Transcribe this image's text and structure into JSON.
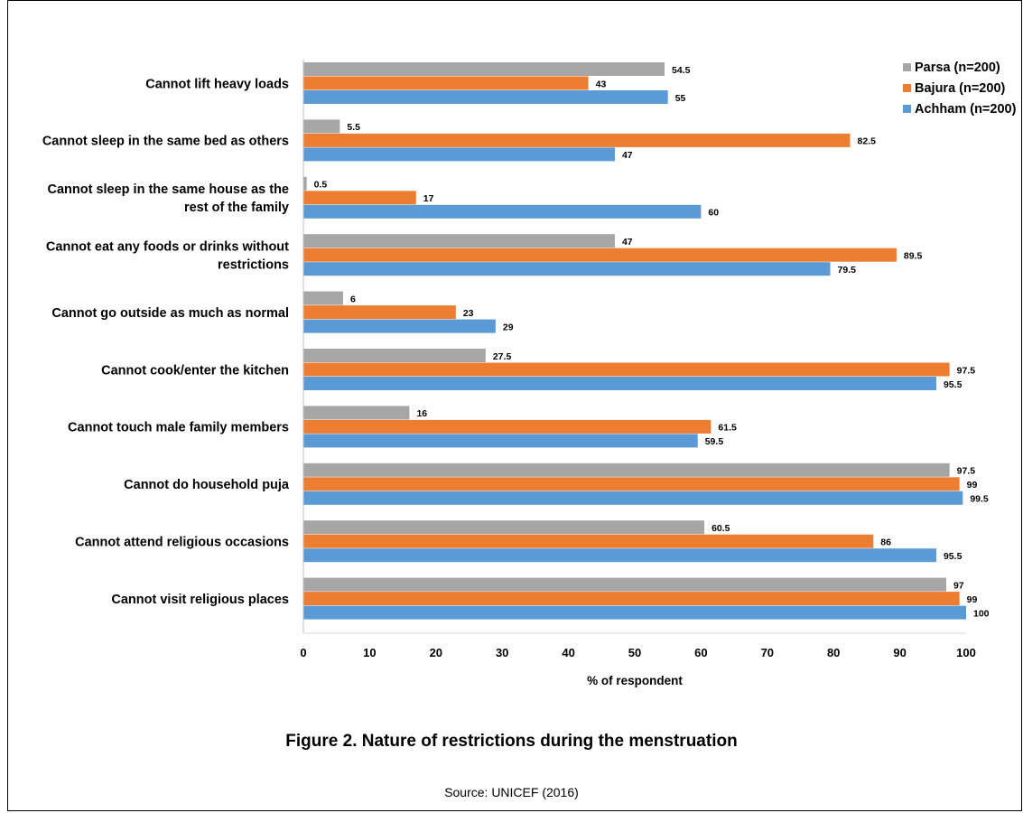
{
  "chart_data": {
    "type": "bar",
    "orientation": "horizontal",
    "categories": [
      "Cannot lift heavy loads",
      "Cannot sleep in the same bed as others",
      "Cannot sleep in the same house as the rest of the family",
      "Cannot eat any foods or drinks without restrictions",
      "Cannot go outside as much as normal",
      "Cannot cook/enter the kitchen",
      "Cannot touch male family members",
      "Cannot do household puja",
      "Cannot attend religious occasions",
      "Cannot visit religious places"
    ],
    "category_lines": [
      [
        "Cannot lift heavy loads"
      ],
      [
        "Cannot sleep in the same bed as others"
      ],
      [
        "Cannot sleep in the same house as the",
        "rest of the family"
      ],
      [
        "Cannot eat any foods or drinks without",
        "restrictions"
      ],
      [
        "Cannot go outside as much as normal"
      ],
      [
        "Cannot cook/enter the kitchen"
      ],
      [
        "Cannot touch male family members"
      ],
      [
        "Cannot do household puja"
      ],
      [
        "Cannot attend religious occasions"
      ],
      [
        "Cannot visit religious places"
      ]
    ],
    "series": [
      {
        "name": "Parsa (n=200)",
        "color": "#a6a6a6",
        "values": [
          54.5,
          5.5,
          0.5,
          47,
          6,
          27.5,
          16,
          97.5,
          60.5,
          97
        ]
      },
      {
        "name": "Bajura (n=200)",
        "color": "#ed7d31",
        "values": [
          43,
          82.5,
          17,
          89.5,
          23,
          97.5,
          61.5,
          99,
          86,
          99
        ]
      },
      {
        "name": "Achham (n=200)",
        "color": "#5b9bd5",
        "values": [
          55,
          47,
          60,
          79.5,
          29,
          95.5,
          59.5,
          99.5,
          95.5,
          100
        ]
      }
    ],
    "xlabel": "% of respondent",
    "ylabel": "",
    "xlim": [
      0,
      100
    ],
    "xticks": [
      0,
      10,
      20,
      30,
      40,
      50,
      60,
      70,
      80,
      90,
      100
    ],
    "grid": false,
    "legend_position": "top-right"
  },
  "caption": "Figure 2. Nature of restrictions during the menstruation",
  "source": "Source: UNICEF (2016)"
}
